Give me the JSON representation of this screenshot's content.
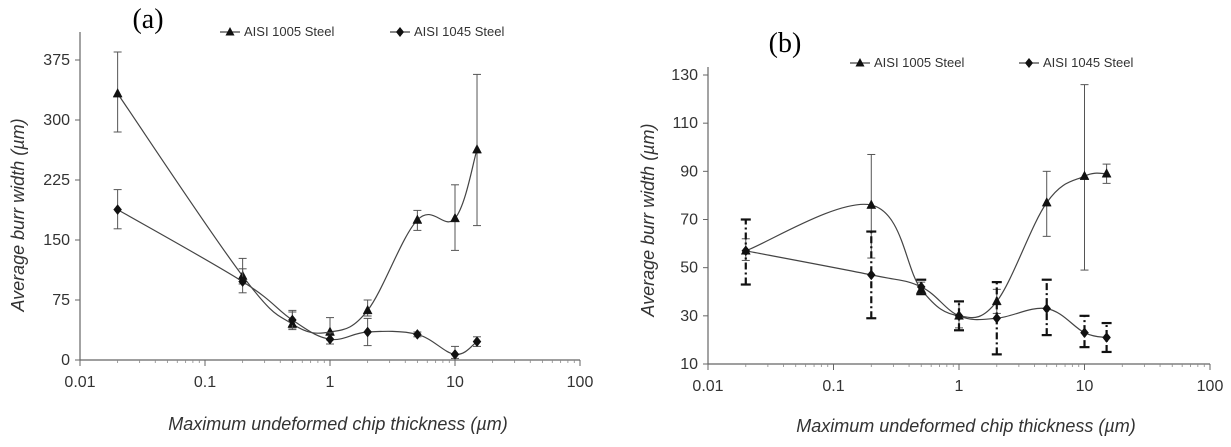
{
  "chart_data": [
    {
      "panel_label": "(a)",
      "type": "line",
      "xscale": "log",
      "xlim": [
        0.01,
        100
      ],
      "ylim": [
        0,
        400
      ],
      "xticks": [
        "0.01",
        "0.1",
        "1",
        "10",
        "100"
      ],
      "yticks": [
        "0",
        "75",
        "150",
        "225",
        "300",
        "375"
      ],
      "xlabel": "Maximum undeformed chip thickness (µm)",
      "ylabel": "Average burr width  (µm)",
      "grid": false,
      "legend_position": "top",
      "series": [
        {
          "name": "AISI 1005 Steel",
          "marker": "triangle",
          "points": [
            {
              "x": 0.02,
              "y": 333,
              "lo": 285,
              "hi": 385
            },
            {
              "x": 0.2,
              "y": 105,
              "lo": 95,
              "hi": 127
            },
            {
              "x": 0.5,
              "y": 45,
              "lo": 38,
              "hi": 60
            },
            {
              "x": 1,
              "y": 35,
              "lo": 25,
              "hi": 53
            },
            {
              "x": 2,
              "y": 62,
              "lo": 55,
              "hi": 75
            },
            {
              "x": 5,
              "y": 175,
              "lo": 162,
              "hi": 187
            },
            {
              "x": 10,
              "y": 177,
              "lo": 137,
              "hi": 219
            },
            {
              "x": 15,
              "y": 263,
              "lo": 168,
              "hi": 357
            }
          ]
        },
        {
          "name": "AISI 1045 Steel",
          "marker": "diamond",
          "points": [
            {
              "x": 0.02,
              "y": 188,
              "lo": 164,
              "hi": 213
            },
            {
              "x": 0.2,
              "y": 98,
              "lo": 84,
              "hi": 114
            },
            {
              "x": 0.5,
              "y": 50,
              "lo": 40,
              "hi": 62
            },
            {
              "x": 1,
              "y": 26,
              "lo": 20,
              "hi": 34
            },
            {
              "x": 2,
              "y": 35,
              "lo": 18,
              "hi": 52
            },
            {
              "x": 5,
              "y": 32,
              "lo": 29,
              "hi": 35
            },
            {
              "x": 10,
              "y": 7,
              "lo": 2,
              "hi": 17
            },
            {
              "x": 15,
              "y": 23,
              "lo": 17,
              "hi": 29
            }
          ]
        }
      ]
    },
    {
      "panel_label": "(b)",
      "type": "line",
      "xscale": "log",
      "xlim": [
        0.01,
        100
      ],
      "ylim": [
        10,
        130
      ],
      "xticks": [
        "0.01",
        "0.1",
        "1",
        "10",
        "100"
      ],
      "yticks": [
        "10",
        "30",
        "50",
        "70",
        "90",
        "110",
        "130"
      ],
      "xlabel": "Maximum undeformed chip thickness (µm)",
      "ylabel": "Average burr width  (µm)",
      "grid": false,
      "legend_position": "top",
      "series": [
        {
          "name": "AISI 1005 Steel",
          "marker": "triangle",
          "points": [
            {
              "x": 0.02,
              "y": 57,
              "lo": 53,
              "hi": 62
            },
            {
              "x": 0.2,
              "y": 76,
              "lo": 54,
              "hi": 97
            },
            {
              "x": 0.5,
              "y": 41,
              "lo": 39,
              "hi": 44
            },
            {
              "x": 1,
              "y": 30,
              "lo": 25,
              "hi": 36
            },
            {
              "x": 2,
              "y": 36,
              "lo": 31,
              "hi": 41
            },
            {
              "x": 5,
              "y": 77,
              "lo": 63,
              "hi": 90
            },
            {
              "x": 10,
              "y": 88,
              "lo": 49,
              "hi": 126
            },
            {
              "x": 15,
              "y": 89,
              "lo": 85,
              "hi": 93
            }
          ]
        },
        {
          "name": "AISI 1045 Steel",
          "marker": "diamond",
          "points": [
            {
              "x": 0.02,
              "y": 57,
              "lo": 43,
              "hi": 70
            },
            {
              "x": 0.2,
              "y": 47,
              "lo": 29,
              "hi": 65
            },
            {
              "x": 0.5,
              "y": 42,
              "lo": 39,
              "hi": 45
            },
            {
              "x": 1,
              "y": 30,
              "lo": 24,
              "hi": 36
            },
            {
              "x": 2,
              "y": 29,
              "lo": 14,
              "hi": 44
            },
            {
              "x": 5,
              "y": 33,
              "lo": 22,
              "hi": 45
            },
            {
              "x": 10,
              "y": 23,
              "lo": 17,
              "hi": 30
            },
            {
              "x": 15,
              "y": 21,
              "lo": 15,
              "hi": 27
            }
          ]
        }
      ]
    }
  ]
}
